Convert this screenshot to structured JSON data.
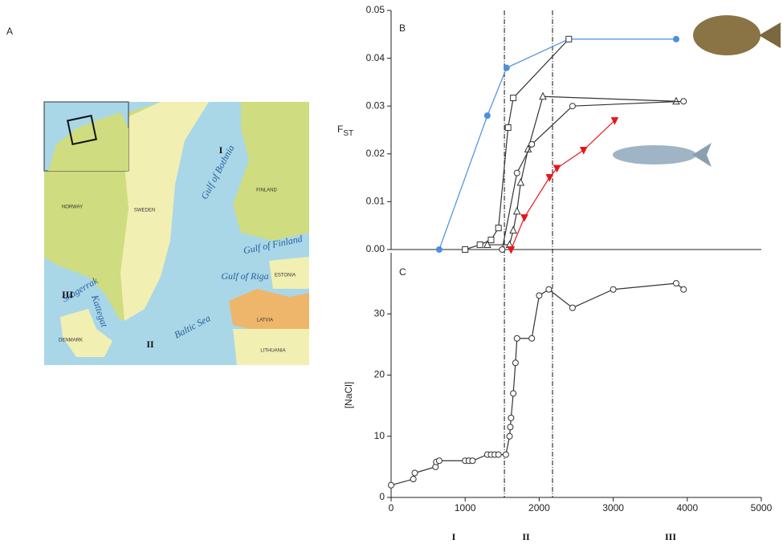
{
  "panels": [
    "A",
    "B",
    "C"
  ],
  "map": {
    "labels": [
      "NORWAY",
      "SWEDEN",
      "FINLAND",
      "ESTONIA",
      "LATVIA",
      "LITHUANIA",
      "DENMARK",
      "Baltic Sea",
      "Gulf of Bothnia",
      "Gulf of Finland",
      "Gulf of Riga",
      "Kattegat",
      "Skagerrak"
    ],
    "regions": [
      "I",
      "II",
      "III"
    ]
  },
  "regions": [
    "I",
    "II",
    "III"
  ],
  "chart_data": [
    {
      "type": "line",
      "ylabel": "F",
      "ylabel_subscript": "ST",
      "xlim": [
        0,
        5000
      ],
      "ylim": [
        0,
        0.05
      ],
      "yticks": [
        {
          "value": 0,
          "label": "0.00"
        },
        {
          "value": 0.01,
          "label": "0.01"
        },
        {
          "value": 0.02,
          "label": "0.02"
        },
        {
          "value": 0.03,
          "label": "0.03"
        },
        {
          "value": 0.04,
          "label": "0.04"
        },
        {
          "value": 0.05,
          "label": "0.05"
        }
      ],
      "vlines": [
        1530,
        2180
      ],
      "series": [
        {
          "color": "#4a8fe0",
          "marker": "circle",
          "filled": true,
          "x": [
            650,
            1300,
            1560,
            2400,
            3850
          ],
          "values": [
            0,
            0.028,
            0.038,
            0.044,
            0.044
          ]
        },
        {
          "color": "#333333",
          "marker": "square",
          "filled": false,
          "x": [
            1000,
            1200,
            1350,
            1450,
            1580,
            1650,
            2400
          ],
          "values": [
            0,
            0.001,
            0.002,
            0.0045,
            0.0255,
            0.0317,
            0.044
          ]
        },
        {
          "color": "#333333",
          "marker": "triangle",
          "filled": false,
          "x": [
            1300,
            1600,
            1650,
            1700,
            1750,
            1850,
            2050,
            3850
          ],
          "values": [
            0.001,
            0.001,
            0.004,
            0.008,
            0.014,
            0.021,
            0.032,
            0.031
          ]
        },
        {
          "color": "#333333",
          "marker": "circle",
          "filled": false,
          "x": [
            1500,
            1700,
            1900,
            2450,
            3950
          ],
          "values": [
            0,
            0.016,
            0.022,
            0.03,
            0.031
          ]
        },
        {
          "color": "#e8161b",
          "marker": "triangle-down",
          "filled": true,
          "x": [
            1620,
            1800,
            2140,
            2240,
            2600,
            3020
          ],
          "values": [
            0,
            0.0067,
            0.0151,
            0.017,
            0.0208,
            0.027
          ]
        }
      ]
    },
    {
      "type": "line",
      "ylabel": "[NaCl]",
      "xlim": [
        0,
        5000
      ],
      "ylim": [
        0,
        40
      ],
      "xticks": [
        0,
        1000,
        2000,
        3000,
        4000,
        5000
      ],
      "yticks": [
        0,
        10,
        20,
        30
      ],
      "series": [
        {
          "color": "#333333",
          "marker": "circle",
          "filled": false,
          "x": [
            0,
            300,
            320,
            600,
            610,
            650,
            1000,
            1050,
            1100,
            1300,
            1350,
            1400,
            1450,
            1550,
            1600,
            1610,
            1620,
            1650,
            1680,
            1700,
            1900,
            2000,
            2130,
            2450,
            3000,
            3850,
            3950
          ],
          "values": [
            2,
            3,
            4,
            5,
            5.8,
            6,
            6,
            6,
            6,
            7,
            7,
            7,
            7,
            7,
            10,
            11.5,
            13,
            17,
            22,
            26,
            26,
            33,
            34,
            31,
            34,
            35,
            34
          ]
        }
      ]
    }
  ]
}
